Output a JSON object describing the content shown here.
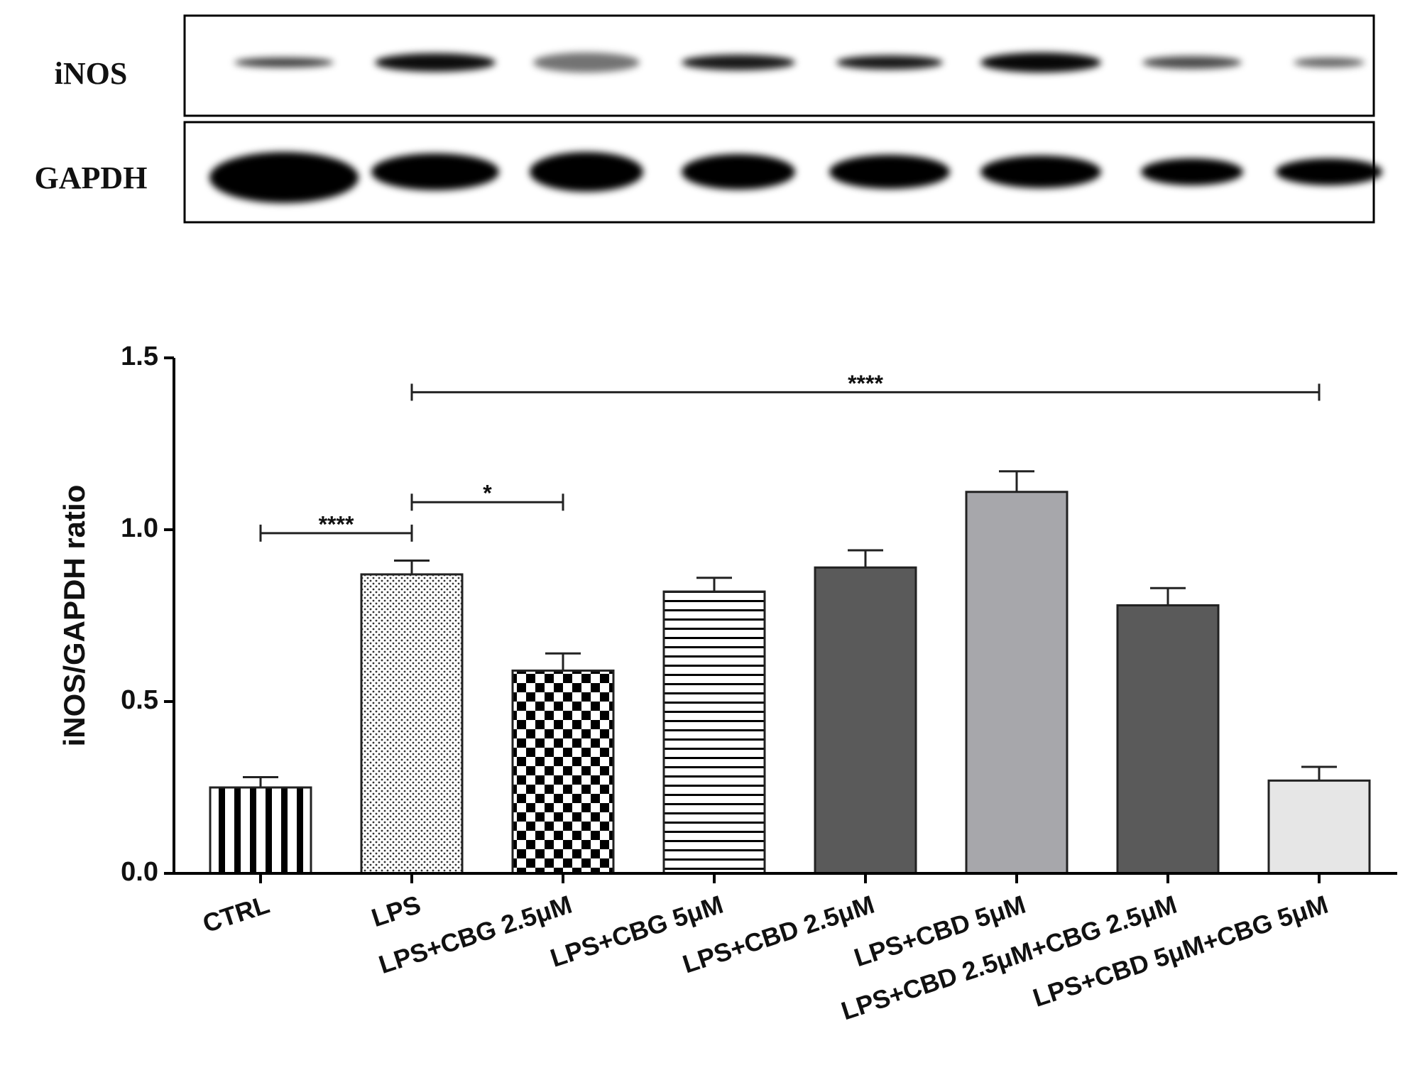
{
  "blot": {
    "rows": [
      "iNOS",
      "GAPDH"
    ]
  },
  "chart_data": {
    "type": "bar",
    "y_label": "iNOS/GAPDH ratio",
    "categories": [
      "CTRL",
      "LPS",
      "LPS+CBG 2.5μM",
      "LPS+CBG 5μM",
      "LPS+CBD 2.5μM",
      "LPS+CBD 5μM",
      "LPS+CBD 2.5μM+CBG 2.5μM",
      "LPS+CBD 5μM+CBG 5μM"
    ],
    "values": [
      0.25,
      0.87,
      0.59,
      0.82,
      0.89,
      1.11,
      0.78,
      0.27
    ],
    "errors": [
      0.03,
      0.04,
      0.05,
      0.04,
      0.05,
      0.06,
      0.05,
      0.04
    ],
    "patterns": [
      "vertical-stripes",
      "dots",
      "checker",
      "horizontal-stripes",
      "solid",
      "solid",
      "solid",
      "solid"
    ],
    "colors": [
      "#ffffff",
      "#ffffff",
      "#ffffff",
      "#ffffff",
      "#5a5a5a",
      "#a7a7ab",
      "#5a5a5a",
      "#e6e6e6"
    ],
    "ylim": [
      0,
      1.5
    ],
    "yticks": [
      {
        "value": 0,
        "label": "0.0"
      },
      {
        "value": 0.5,
        "label": "0.5"
      },
      {
        "value": 1,
        "label": "1.0"
      },
      {
        "value": 1.5,
        "label": "1.5"
      }
    ],
    "annotations": [
      {
        "text": "****",
        "from": "CTRL",
        "to": "LPS",
        "y": 0.99
      },
      {
        "text": "*",
        "from": "LPS",
        "to": "LPS+CBG 2.5μM",
        "y": 1.08
      },
      {
        "text": "****",
        "from": "LPS",
        "to": "LPS+CBD 5μM+CBG 5μM",
        "y": 1.4
      }
    ]
  }
}
